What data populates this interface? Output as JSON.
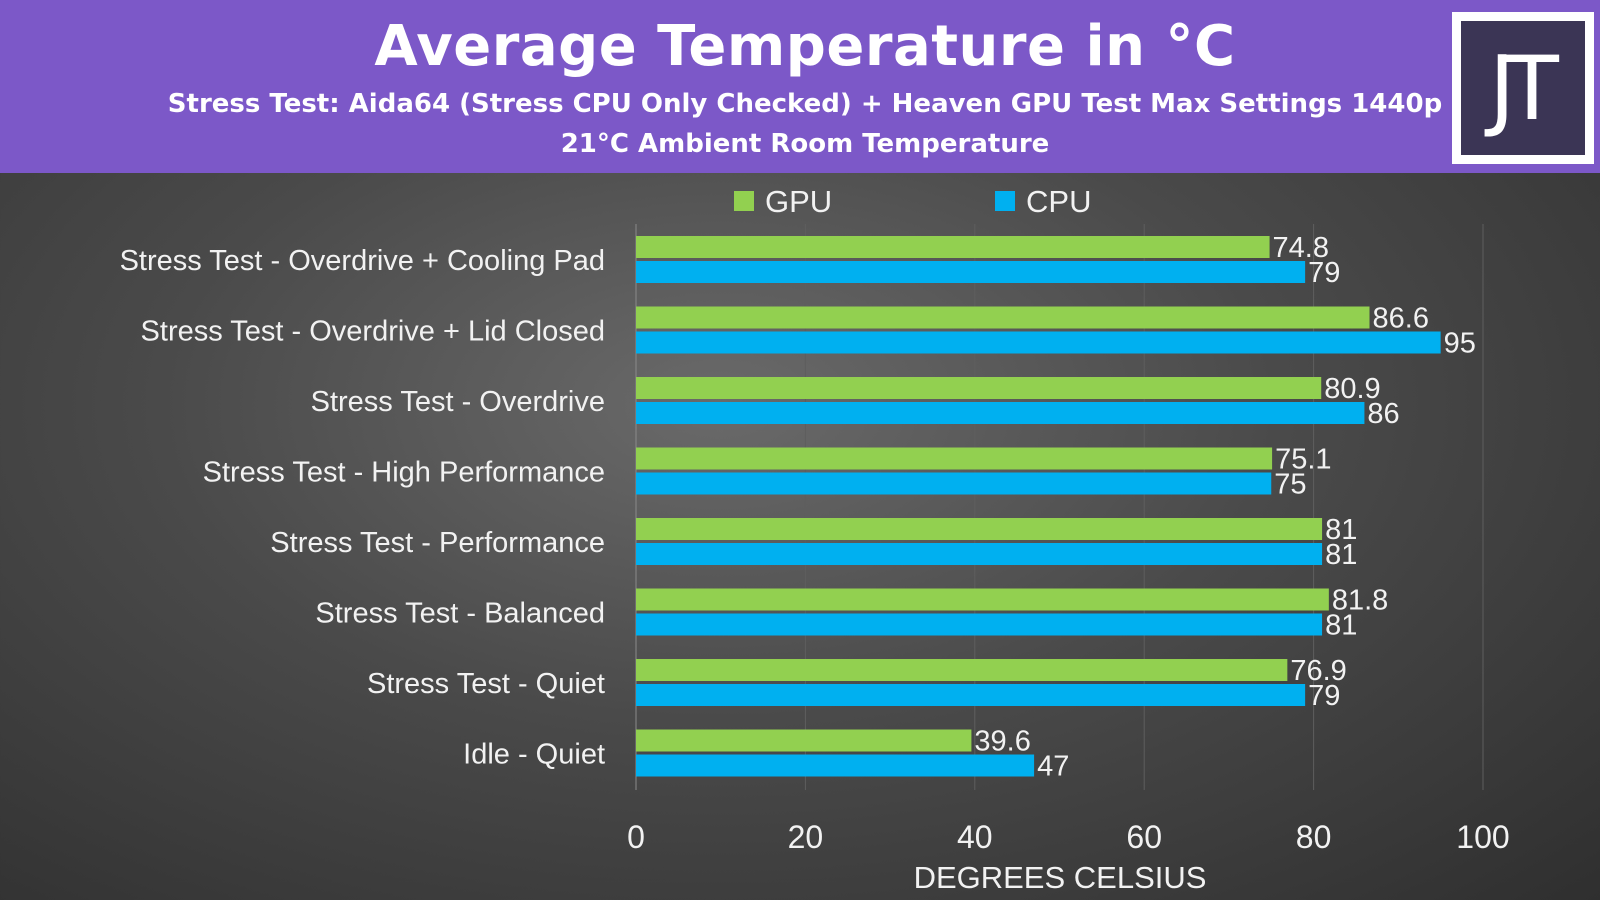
{
  "header": {
    "title": "Average Temperature in °C",
    "subtitle_line1": "Stress Test: Aida64 (Stress CPU Only Checked) + Heaven GPU Test Max Settings 1440p",
    "subtitle_line2": "21°C Ambient Room Temperature",
    "logo_text": "JT"
  },
  "colors": {
    "header_bg": "#7c58c8",
    "gpu": "#92d050",
    "cpu": "#00b0f0"
  },
  "chart_data": {
    "type": "bar",
    "orientation": "horizontal",
    "title": "Average Temperature in °C",
    "categories": [
      "Stress Test - Overdrive + Cooling Pad",
      "Stress Test - Overdrive + Lid Closed",
      "Stress Test - Overdrive",
      "Stress Test - High Performance",
      "Stress Test - Performance",
      "Stress Test - Balanced",
      "Stress Test - Quiet",
      "Idle - Quiet"
    ],
    "series": [
      {
        "name": "GPU",
        "color": "#92d050",
        "values": [
          74.8,
          86.6,
          80.9,
          75.1,
          81,
          81.8,
          76.9,
          39.6
        ],
        "labels": [
          "74.8",
          "86.6",
          "80.9",
          "75.1",
          "81",
          "81.8",
          "76.9",
          "39.6"
        ]
      },
      {
        "name": "CPU",
        "color": "#00b0f0",
        "values": [
          79,
          95,
          86,
          75,
          81,
          81,
          79,
          47
        ],
        "labels": [
          "79",
          "95",
          "86",
          "75",
          "81",
          "81",
          "79",
          "47"
        ]
      }
    ],
    "xlabel": "DEGREES CELSIUS",
    "ylabel": "",
    "xlim": [
      0,
      100
    ],
    "xticks": [
      "0",
      "20",
      "40",
      "60",
      "80",
      "100"
    ],
    "legend": "top",
    "grid": true
  }
}
